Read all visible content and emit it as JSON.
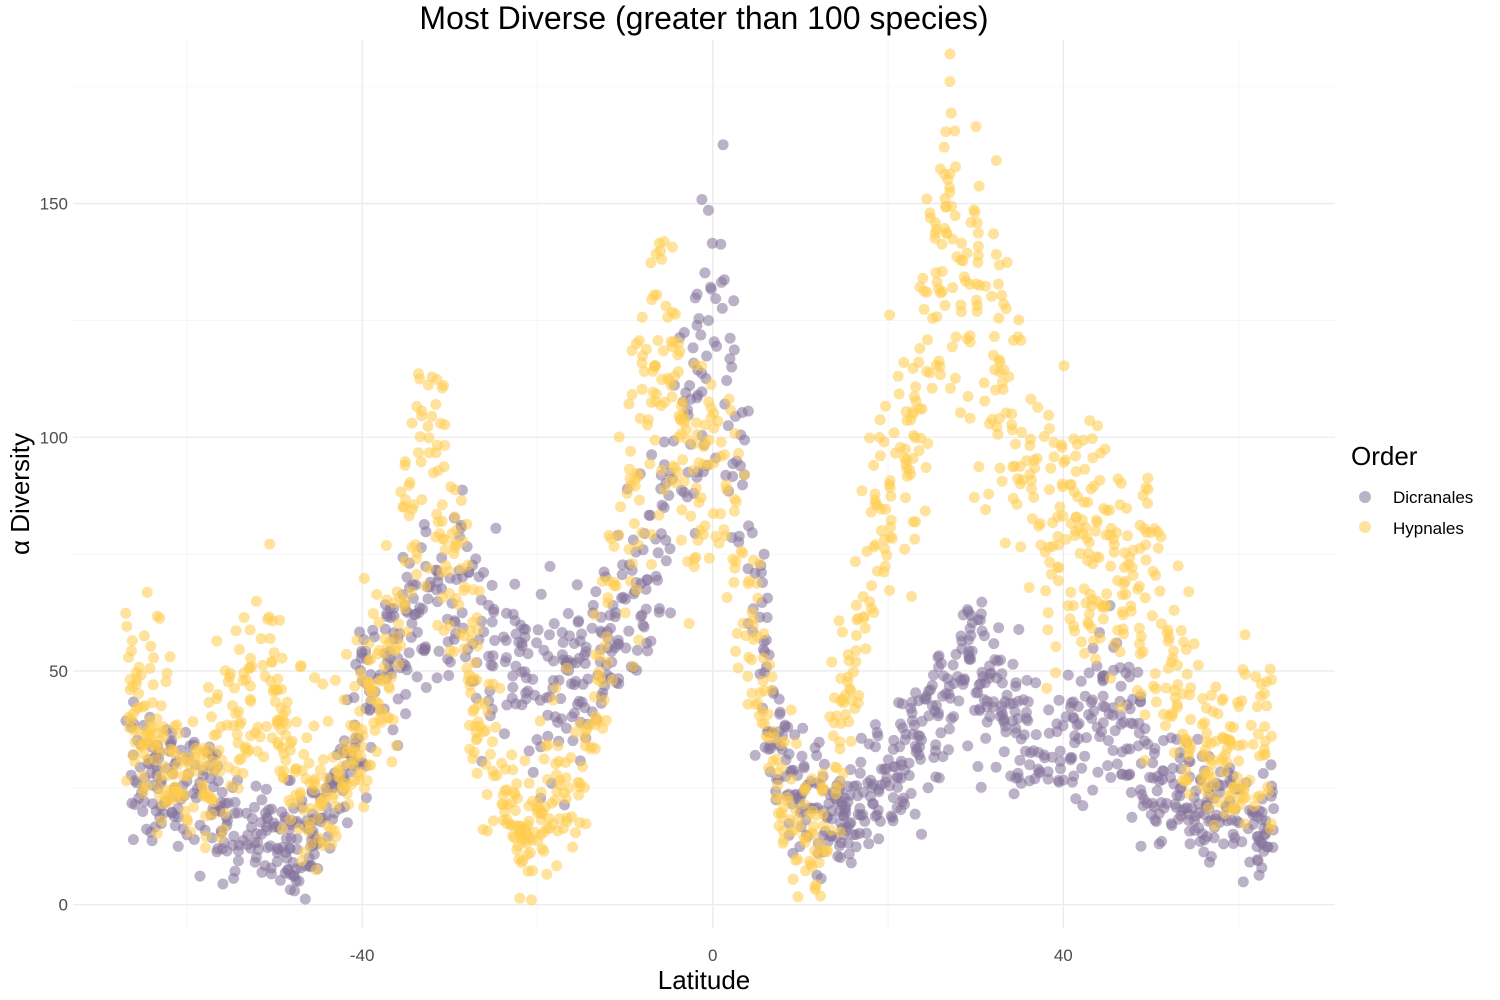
{
  "chart_data": {
    "type": "scatter",
    "title": "Most Diverse (greater than 100 species)",
    "xlabel": "Latitude",
    "ylabel": "α Diversity",
    "xlim": [
      -73,
      71
    ],
    "ylim": [
      -5,
      185
    ],
    "x_ticks": [
      -40,
      0,
      40
    ],
    "y_ticks": [
      0,
      50,
      100,
      150
    ],
    "grid": true,
    "legend": {
      "title": "Order",
      "position": "right"
    },
    "point_alpha": 0.55,
    "series": [
      {
        "name": "Dicranales",
        "color": "#85729B",
        "profile": [
          [
            -67,
            30
          ],
          [
            -62,
            26
          ],
          [
            -58,
            22
          ],
          [
            -54,
            17
          ],
          [
            -50,
            12
          ],
          [
            -46,
            13
          ],
          [
            -43,
            24
          ],
          [
            -40,
            42
          ],
          [
            -37,
            55
          ],
          [
            -33,
            63
          ],
          [
            -29,
            66
          ],
          [
            -26,
            60
          ],
          [
            -23,
            52
          ],
          [
            -20,
            46
          ],
          [
            -17,
            46
          ],
          [
            -14,
            52
          ],
          [
            -11,
            60
          ],
          [
            -8,
            68
          ],
          [
            -6,
            80
          ],
          [
            -4,
            100
          ],
          [
            -2,
            112
          ],
          [
            0,
            120
          ],
          [
            2,
            110
          ],
          [
            4,
            80
          ],
          [
            6,
            50
          ],
          [
            8,
            30
          ],
          [
            10,
            20
          ],
          [
            13,
            17
          ],
          [
            16,
            20
          ],
          [
            19,
            25
          ],
          [
            22,
            30
          ],
          [
            25,
            36
          ],
          [
            28,
            52
          ],
          [
            30,
            55
          ],
          [
            32,
            45
          ],
          [
            35,
            40
          ],
          [
            38,
            33
          ],
          [
            41,
            32
          ],
          [
            44,
            46
          ],
          [
            47,
            40
          ],
          [
            50,
            26
          ],
          [
            53,
            22
          ],
          [
            56,
            20
          ],
          [
            60,
            18
          ],
          [
            64,
            17
          ]
        ],
        "spread": 22
      },
      {
        "name": "Hypnales",
        "color": "#FFCC4D",
        "profile": [
          [
            -67,
            45
          ],
          [
            -62,
            30
          ],
          [
            -58,
            24
          ],
          [
            -54,
            40
          ],
          [
            -51,
            52
          ],
          [
            -48,
            28
          ],
          [
            -45,
            22
          ],
          [
            -42,
            28
          ],
          [
            -39,
            45
          ],
          [
            -36,
            60
          ],
          [
            -33,
            95
          ],
          [
            -30,
            80
          ],
          [
            -27,
            45
          ],
          [
            -24,
            22
          ],
          [
            -21,
            16
          ],
          [
            -18,
            20
          ],
          [
            -15,
            28
          ],
          [
            -12,
            55
          ],
          [
            -9,
            90
          ],
          [
            -6,
            120
          ],
          [
            -3,
            90
          ],
          [
            0,
            95
          ],
          [
            3,
            75
          ],
          [
            6,
            42
          ],
          [
            9,
            18
          ],
          [
            12,
            12
          ],
          [
            15,
            40
          ],
          [
            18,
            75
          ],
          [
            21,
            95
          ],
          [
            24,
            110
          ],
          [
            27,
            145
          ],
          [
            30,
            130
          ],
          [
            33,
            110
          ],
          [
            36,
            90
          ],
          [
            39,
            82
          ],
          [
            42,
            78
          ],
          [
            45,
            72
          ],
          [
            48,
            70
          ],
          [
            51,
            60
          ],
          [
            54,
            40
          ],
          [
            57,
            32
          ],
          [
            60,
            31
          ],
          [
            64,
            32
          ]
        ],
        "spread": 45
      }
    ]
  }
}
